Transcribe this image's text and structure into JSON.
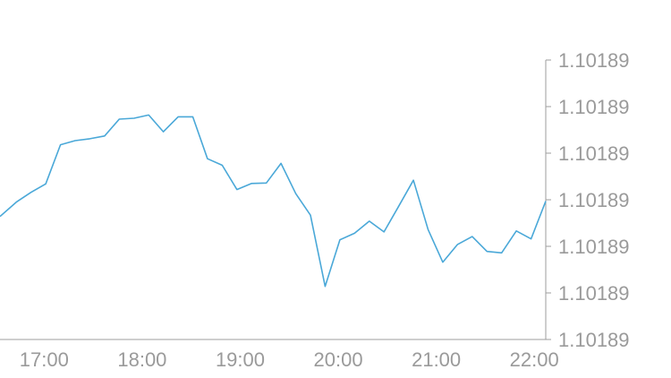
{
  "chart_data": {
    "type": "line",
    "title": "",
    "xlabel": "",
    "ylabel": "",
    "x_tick_labels": [
      "17:00",
      "18:00",
      "19:00",
      "20:00",
      "21:00",
      "22:00"
    ],
    "y_tick_labels": [
      "1.10189",
      "1.10189",
      "1.10189",
      "1.10189",
      "1.10189",
      "1.10189",
      "1.10189"
    ],
    "ylim": [
      0,
      6
    ],
    "xlim": [
      "16:33",
      "22:07"
    ],
    "x_axis_time_base_hour": 16,
    "grid": false,
    "legend": "none",
    "series": [
      {
        "color": "#4aa8d8",
        "points": [
          [
            "16:33",
            2.64
          ],
          [
            "16:43",
            2.95
          ],
          [
            "16:52",
            3.16
          ],
          [
            "17:01",
            3.34
          ],
          [
            "17:10",
            4.18
          ],
          [
            "17:19",
            4.27
          ],
          [
            "17:28",
            4.31
          ],
          [
            "17:37",
            4.37
          ],
          [
            "17:46",
            4.73
          ],
          [
            "17:55",
            4.75
          ],
          [
            "18:04",
            4.82
          ],
          [
            "18:13",
            4.46
          ],
          [
            "18:22",
            4.78
          ],
          [
            "18:31",
            4.78
          ],
          [
            "18:40",
            3.88
          ],
          [
            "18:49",
            3.74
          ],
          [
            "18:58",
            3.22
          ],
          [
            "19:07",
            3.35
          ],
          [
            "19:16",
            3.36
          ],
          [
            "19:25",
            3.78
          ],
          [
            "19:34",
            3.13
          ],
          [
            "19:43",
            2.67
          ],
          [
            "19:52",
            1.14
          ],
          [
            "20:01",
            2.14
          ],
          [
            "20:10",
            2.28
          ],
          [
            "20:19",
            2.54
          ],
          [
            "20:28",
            2.31
          ],
          [
            "20:37",
            2.86
          ],
          [
            "20:46",
            3.42
          ],
          [
            "20:55",
            2.36
          ],
          [
            "21:04",
            1.66
          ],
          [
            "21:13",
            2.04
          ],
          [
            "21:22",
            2.21
          ],
          [
            "21:31",
            1.89
          ],
          [
            "21:40",
            1.86
          ],
          [
            "21:49",
            2.33
          ],
          [
            "21:58",
            2.16
          ],
          [
            "22:07",
            2.97
          ]
        ]
      }
    ]
  }
}
